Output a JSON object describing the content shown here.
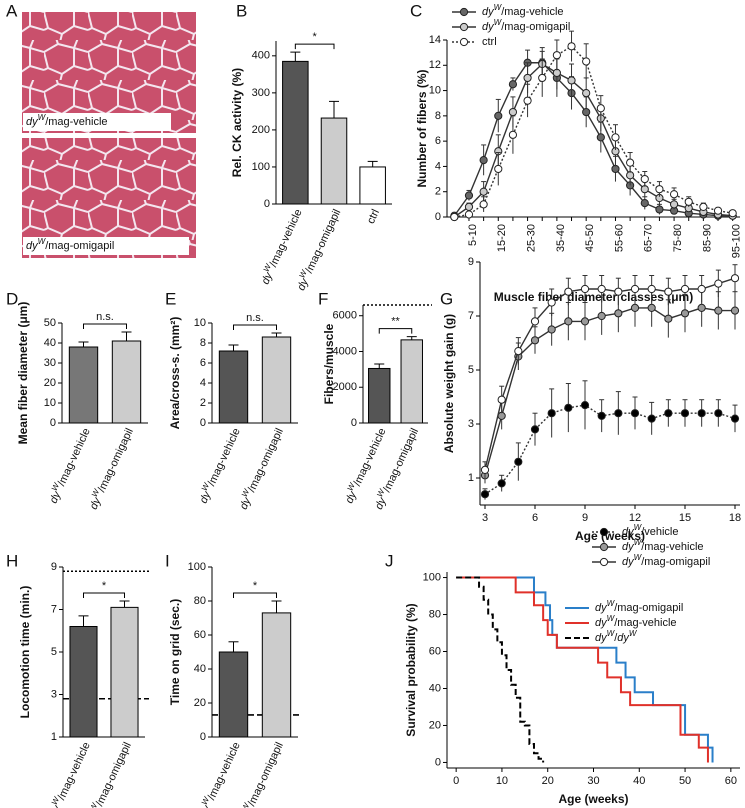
{
  "chart_data": [
    {
      "label": "A",
      "type": "image",
      "captions": [
        "dyW/mag-vehicle",
        "dyW/mag-omigapil"
      ]
    },
    {
      "label": "B",
      "type": "bar",
      "ylabel": "Rel. CK activity (%)",
      "categories": [
        "dyW/mag-vehicle",
        "dyW/mag-omigapil",
        "ctrl"
      ],
      "values": [
        385,
        232,
        100
      ],
      "errors": [
        25,
        45,
        15
      ],
      "colors": [
        "#555555",
        "#cccccc",
        "#ffffff"
      ],
      "ylim": [
        0,
        440
      ],
      "yticks": [
        0,
        100,
        200,
        300,
        400
      ],
      "annotation": "*"
    },
    {
      "label": "C",
      "type": "line",
      "ylabel": "Number of fibers (%)",
      "xlabel": "Muscle fiber diameter classes (μm)",
      "categories": [
        null,
        "5-10",
        null,
        "15-20",
        null,
        "25-30",
        null,
        "35-40",
        null,
        "45-50",
        null,
        "55-60",
        null,
        "65-70",
        null,
        "75-80",
        null,
        "85-90",
        null,
        "95-100"
      ],
      "ylim": [
        0,
        14
      ],
      "yticks": [
        0,
        2,
        4,
        6,
        8,
        10,
        12,
        14
      ],
      "series": [
        {
          "name": "dyW/mag-vehicle",
          "color": "#666666",
          "dash": "solid",
          "values": [
            0.1,
            1.7,
            4.5,
            8.0,
            10.5,
            12.2,
            12.2,
            11.0,
            9.8,
            8.3,
            6.3,
            3.8,
            2.5,
            1.1,
            0.6,
            0.5,
            0.3,
            0.2,
            0.1,
            0.1
          ],
          "errors": [
            0.1,
            0.4,
            1.2,
            1.3,
            0.5,
            1.0,
            1.2,
            1.5,
            1.3,
            1.2,
            1.2,
            1.0,
            0.8,
            0.5,
            0.4,
            0.3,
            0.2,
            0.2,
            0.1,
            0.1
          ]
        },
        {
          "name": "dyW/mag-omigapil",
          "color": "#cccccc",
          "dash": "solid",
          "values": [
            0.0,
            0.8,
            2.0,
            5.2,
            8.3,
            11.0,
            12.1,
            11.4,
            10.8,
            9.8,
            7.8,
            5.2,
            3.3,
            2.2,
            1.5,
            1.0,
            0.7,
            0.4,
            0.2,
            0.1
          ],
          "errors": [
            0.1,
            0.3,
            0.8,
            1.3,
            1.2,
            1.2,
            1.0,
            1.3,
            1.3,
            1.2,
            1.0,
            1.2,
            0.8,
            0.6,
            0.5,
            0.4,
            0.3,
            0.2,
            0.2,
            0.1
          ]
        },
        {
          "name": "ctrl",
          "color": "#ffffff",
          "dash": "dotted",
          "values": [
            0.0,
            0.2,
            1.0,
            3.8,
            6.5,
            9.2,
            11.0,
            12.8,
            13.5,
            12.3,
            8.6,
            6.3,
            4.3,
            3.0,
            2.2,
            1.8,
            1.2,
            0.8,
            0.5,
            0.3
          ],
          "errors": [
            0.1,
            0.2,
            0.6,
            1.3,
            1.5,
            1.3,
            1.5,
            1.2,
            1.2,
            1.4,
            1.0,
            1.0,
            0.8,
            0.6,
            0.6,
            0.5,
            0.4,
            0.3,
            0.2,
            0.2
          ]
        }
      ]
    },
    {
      "label": "D",
      "type": "bar",
      "ylabel": "Mean fiber diameter (μm)",
      "categories": [
        "dyW/mag-vehicle",
        "dyW/mag-omigapil"
      ],
      "values": [
        38,
        41
      ],
      "errors": [
        2.5,
        4.5
      ],
      "colors": [
        "#777777",
        "#cccccc"
      ],
      "ylim": [
        0,
        50
      ],
      "yticks": [
        0,
        10,
        20,
        30,
        40,
        50
      ],
      "annotation": "n.s."
    },
    {
      "label": "E",
      "type": "bar",
      "ylabel": "Area/cross-s. (mm²)",
      "categories": [
        "dyW/mag-vehicle",
        "dyW/mag-omigapil"
      ],
      "values": [
        7.2,
        8.6
      ],
      "errors": [
        0.6,
        0.4
      ],
      "colors": [
        "#555555",
        "#cccccc"
      ],
      "ylim": [
        0,
        10
      ],
      "yticks": [
        0,
        2,
        4,
        6,
        8,
        10
      ],
      "annotation": "n.s."
    },
    {
      "label": "F",
      "type": "bar",
      "ylabel": "Fibers/muscle",
      "categories": [
        "dyW/mag-vehicle",
        "dyW/mag-omigapil"
      ],
      "values": [
        3050,
        4650
      ],
      "errors": [
        250,
        180
      ],
      "colors": [
        "#555555",
        "#cccccc"
      ],
      "ylim": [
        0,
        6600
      ],
      "yticks": [
        0,
        2000,
        4000,
        6000
      ],
      "annotation": "**",
      "ref_lines": [
        {
          "value": 6600,
          "style": "dotted"
        }
      ]
    },
    {
      "label": "G",
      "type": "line",
      "ylabel": "Absolute weight gain (g)",
      "xlabel": "Age (weeks)",
      "x": [
        3,
        4,
        5,
        6,
        7,
        8,
        9,
        10,
        11,
        12,
        13,
        14,
        15,
        16,
        17,
        18
      ],
      "xlim": [
        2.7,
        18.3
      ],
      "xticks": [
        3,
        6,
        9,
        12,
        15,
        18
      ],
      "ylim": [
        0,
        9
      ],
      "yticks": [
        1,
        3,
        5,
        7,
        9
      ],
      "series": [
        {
          "name": "dyW/vehicle",
          "color": "#000000",
          "dash": "dotted",
          "values": [
            0.4,
            0.8,
            1.6,
            2.8,
            3.4,
            3.6,
            3.7,
            3.3,
            3.4,
            3.4,
            3.2,
            3.4,
            3.4,
            3.4,
            3.4,
            3.2
          ],
          "errors": [
            0.2,
            0.3,
            0.7,
            0.6,
            0.9,
            0.9,
            0.9,
            0.6,
            0.8,
            0.6,
            0.6,
            0.5,
            0.5,
            0.5,
            0.5,
            0.5
          ]
        },
        {
          "name": "dyW/mag-vehicle",
          "color": "#999999",
          "dash": "solid",
          "values": [
            1.1,
            3.3,
            5.5,
            6.1,
            6.5,
            6.8,
            6.8,
            7.0,
            7.1,
            7.3,
            7.3,
            6.9,
            7.1,
            7.3,
            7.2,
            7.2
          ],
          "errors": [
            0.3,
            0.5,
            0.5,
            0.5,
            0.6,
            0.7,
            0.7,
            0.7,
            0.7,
            0.7,
            0.7,
            0.7,
            0.7,
            0.7,
            0.7,
            0.7
          ]
        },
        {
          "name": "dyW/mag-omigapil",
          "color": "#ffffff",
          "dash": "solid",
          "values": [
            1.3,
            3.9,
            5.7,
            6.8,
            7.5,
            7.9,
            8.0,
            8.0,
            7.9,
            8.0,
            8.0,
            7.9,
            8.0,
            8.0,
            8.2,
            8.4
          ],
          "errors": [
            0.3,
            0.5,
            0.5,
            0.5,
            0.5,
            0.5,
            0.5,
            0.5,
            0.5,
            0.5,
            0.5,
            0.5,
            0.5,
            0.5,
            0.5,
            0.5
          ]
        }
      ]
    },
    {
      "label": "H",
      "type": "bar",
      "ylabel": "Locomotion time (min.)",
      "categories": [
        "dyW/mag-vehicle",
        "dyW/mag-omigapil"
      ],
      "values": [
        6.2,
        7.1
      ],
      "errors": [
        0.5,
        0.3
      ],
      "colors": [
        "#555555",
        "#cccccc"
      ],
      "ylim": [
        1,
        9
      ],
      "yticks": [
        1,
        3,
        5,
        7,
        9
      ],
      "annotation": "*",
      "ref_lines": [
        {
          "value": 8.8,
          "style": "dotted"
        },
        {
          "value": 2.8,
          "style": "dashed"
        }
      ]
    },
    {
      "label": "I",
      "type": "bar",
      "ylabel": "Time on grid (sec.)",
      "categories": [
        "dyW/mag-vehicle",
        "dyW/mag-omigapil"
      ],
      "values": [
        50,
        73
      ],
      "errors": [
        6,
        7
      ],
      "colors": [
        "#555555",
        "#cccccc"
      ],
      "ylim": [
        0,
        100
      ],
      "yticks": [
        0,
        20,
        40,
        60,
        80,
        100
      ],
      "annotation": "*",
      "ref_lines": [
        {
          "value": 13,
          "style": "dashed"
        }
      ]
    },
    {
      "label": "J",
      "type": "line",
      "step": true,
      "ylabel": "Survival probability (%)",
      "xlabel": "Age (weeks)",
      "xlim": [
        -2,
        62
      ],
      "xticks": [
        0,
        10,
        20,
        30,
        40,
        50,
        60
      ],
      "ylim": [
        -3,
        103
      ],
      "yticks": [
        0,
        20,
        40,
        60,
        80,
        100
      ],
      "series": [
        {
          "name": "dyW/mag-omigapil",
          "color": "#2a7fc9",
          "dash": "solid",
          "x": [
            0,
            17,
            19.5,
            20.5,
            21,
            22,
            35,
            37,
            39,
            43,
            50,
            55,
            56
          ],
          "values": [
            100,
            92,
            85,
            77,
            69,
            62,
            54,
            46,
            38,
            31,
            15,
            8,
            0
          ]
        },
        {
          "name": "dyW/mag-vehicle",
          "color": "#e0312a",
          "dash": "solid",
          "x": [
            0,
            13,
            17,
            19,
            20,
            22,
            31,
            33,
            36,
            38,
            49,
            53,
            55
          ],
          "values": [
            100,
            92,
            85,
            77,
            69,
            62,
            54,
            46,
            38,
            31,
            15,
            8,
            0
          ]
        },
        {
          "name": "dyW/dyW",
          "color": "#000000",
          "dash": "dashed",
          "x": [
            0,
            4,
            5,
            6,
            7,
            8,
            9,
            10,
            11,
            12,
            13,
            14,
            15,
            16,
            17,
            18,
            19
          ],
          "values": [
            100,
            100,
            95,
            88,
            80,
            72,
            65,
            58,
            50,
            42,
            35,
            22,
            20,
            10,
            5,
            2,
            0
          ]
        }
      ]
    }
  ]
}
